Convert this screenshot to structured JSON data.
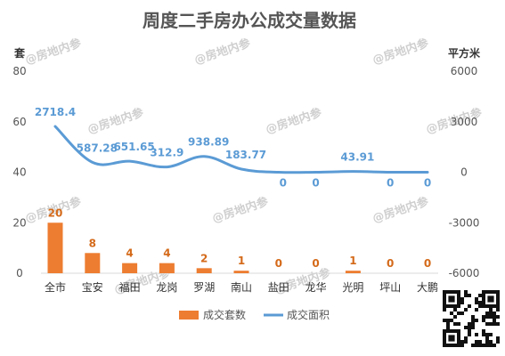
{
  "chart_data": {
    "type": "bar",
    "title": "周度二手房办公成交量数据",
    "categories": [
      "全市",
      "宝安",
      "福田",
      "龙岗",
      "罗湖",
      "南山",
      "盐田",
      "龙华",
      "光明",
      "坪山",
      "大鹏"
    ],
    "series": [
      {
        "name": "成交套数",
        "type": "bar",
        "axis": "left",
        "color": "#ed7d31",
        "values": [
          20,
          8,
          4,
          4,
          2,
          1,
          0,
          0,
          1,
          0,
          0
        ],
        "labels": [
          "20",
          "8",
          "4",
          "4",
          "2",
          "1",
          "0",
          "0",
          "1",
          "0",
          "0"
        ]
      },
      {
        "name": "成交面积",
        "type": "line",
        "axis": "right",
        "color": "#5b9bd5",
        "values": [
          2718.4,
          587.28,
          651.65,
          312.9,
          938.89,
          183.77,
          0,
          0,
          43.91,
          0,
          0
        ],
        "labels": [
          "2718.4",
          "587.28",
          "651.65",
          "312.9",
          "938.89",
          "183.77",
          "0",
          "0",
          "43.91",
          "0",
          "0"
        ]
      }
    ],
    "y_left": {
      "unit_label": "套",
      "min": 0,
      "max": 80,
      "ticks": [
        "0",
        "20",
        "40",
        "60",
        "80"
      ]
    },
    "y_right": {
      "unit_label": "平方米",
      "min": -6000,
      "max": 6000,
      "ticks": [
        "-6000",
        "-3000",
        "0",
        "3000",
        "6000"
      ]
    },
    "legend": {
      "position": "bottom",
      "items": [
        "成交套数",
        "成交面积"
      ]
    },
    "grid": false
  },
  "watermark": {
    "text": "@房地内参"
  }
}
